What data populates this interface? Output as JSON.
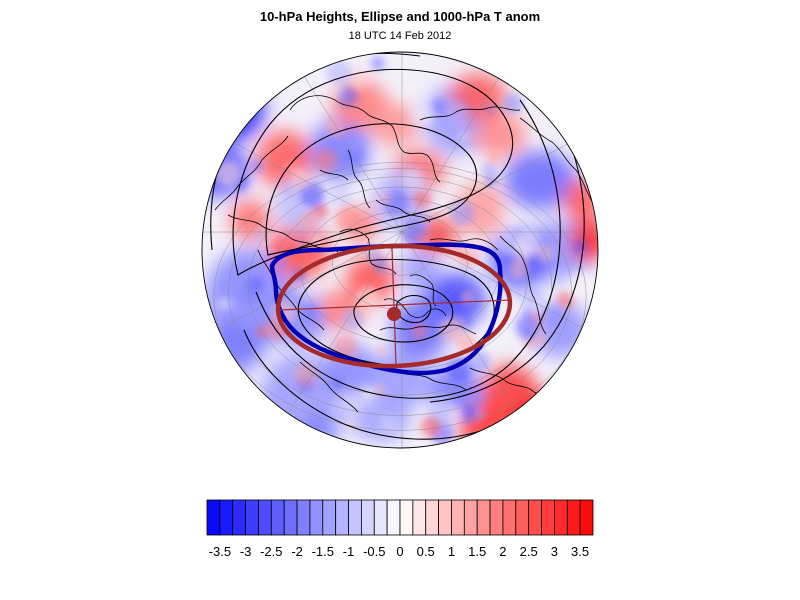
{
  "title": "10-hPa Heights, Ellipse and 1000-hPa T anom",
  "subtitle": "18 UTC 14 Feb 2012",
  "colors": {
    "negative_max": "#0000ff",
    "neutral": "#ffffff",
    "positive_max": "#ff0000",
    "vortex_edge": "#0000b4",
    "ellipse": "#a52a2a",
    "height_contours": "#000000"
  },
  "colorbar": {
    "orientation": "horizontal",
    "levels": [
      -3.75,
      -3.5,
      -3.25,
      -3,
      -2.75,
      -2.5,
      -2.25,
      -2,
      -1.75,
      -1.5,
      -1.25,
      -1,
      -0.75,
      -0.5,
      -0.25,
      0,
      0.25,
      0.5,
      0.75,
      1,
      1.25,
      1.5,
      1.75,
      2,
      2.25,
      2.5,
      2.75,
      3,
      3.25,
      3.5,
      3.75
    ],
    "labels": [
      "-3.5",
      "-3",
      "-2.5",
      "-2",
      "-1.5",
      "-1",
      "-0.5",
      "0",
      "0.5",
      "1",
      "1.5",
      "2",
      "2.5",
      "3",
      "3.5"
    ]
  },
  "map": {
    "projection": "orthographic-polar",
    "hemisphere": "northern",
    "graticule": true,
    "coastlines": true
  }
}
